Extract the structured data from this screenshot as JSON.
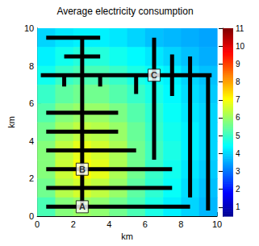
{
  "chart_data": {
    "type": "heatmap",
    "title": "Average electricity consumption",
    "x_label": "km",
    "y_label": "km",
    "xlim": [
      0,
      10
    ],
    "xticks": [
      0,
      2,
      4,
      6,
      8,
      10
    ],
    "ylim": [
      0,
      10
    ],
    "yticks": [
      0,
      2,
      4,
      6,
      8,
      10
    ],
    "cells": {
      "x": [
        0.5,
        1.5,
        2.5,
        3.5,
        4.5,
        5.5,
        6.5,
        7.5,
        8.5,
        9.5
      ],
      "y": [
        9.5,
        8.5,
        7.5,
        6.5,
        5.5,
        4.5,
        3.5,
        2.5,
        1.5,
        0.5
      ],
      "values": [
        [
          4.0,
          4.2,
          4.3,
          4.3,
          4.2,
          4.0,
          3.8,
          3.7,
          3.6,
          3.5
        ],
        [
          4.3,
          4.6,
          4.8,
          4.8,
          4.6,
          4.4,
          4.2,
          4.0,
          3.8,
          3.6
        ],
        [
          4.6,
          5.0,
          5.2,
          5.2,
          5.0,
          4.7,
          4.5,
          4.3,
          4.0,
          3.8
        ],
        [
          5.0,
          5.4,
          5.6,
          5.6,
          5.3,
          5.0,
          4.7,
          4.4,
          4.1,
          3.9
        ],
        [
          5.3,
          5.8,
          6.0,
          6.0,
          5.7,
          5.3,
          4.9,
          4.5,
          4.2,
          4.0
        ],
        [
          5.6,
          6.1,
          6.4,
          6.3,
          6.0,
          5.5,
          5.0,
          4.6,
          4.3,
          4.0
        ],
        [
          5.8,
          6.4,
          6.8,
          6.6,
          6.2,
          5.6,
          5.1,
          4.7,
          4.3,
          4.0
        ],
        [
          5.8,
          6.5,
          7.0,
          6.8,
          6.2,
          5.6,
          5.0,
          4.6,
          4.2,
          3.9
        ],
        [
          5.6,
          6.3,
          6.6,
          6.4,
          6.0,
          5.4,
          4.9,
          4.5,
          4.1,
          3.8
        ],
        [
          5.2,
          5.8,
          6.0,
          5.9,
          5.6,
          5.2,
          4.7,
          4.3,
          4.0,
          3.7
        ]
      ]
    },
    "colorbar_range": [
      0.5,
      11
    ],
    "colorbar_ticks": [
      1,
      2,
      3,
      4,
      5,
      6,
      7,
      8,
      9,
      10,
      11
    ],
    "network": {
      "color": "#000000",
      "segments": [
        [
          [
            2.5,
            0.5
          ],
          [
            2.5,
            9.5
          ]
        ],
        [
          [
            0.5,
            9.5
          ],
          [
            3.5,
            9.5
          ]
        ],
        [
          [
            1.5,
            8.5
          ],
          [
            3.5,
            8.5
          ]
        ],
        [
          [
            0.2,
            7.5
          ],
          [
            9.7,
            7.5
          ]
        ],
        [
          [
            1.5,
            7.5
          ],
          [
            1.5,
            6.9
          ]
        ],
        [
          [
            3.5,
            7.5
          ],
          [
            3.5,
            6.9
          ]
        ],
        [
          [
            5.5,
            7.5
          ],
          [
            5.5,
            6.5
          ]
        ],
        [
          [
            6.5,
            9.5
          ],
          [
            6.5,
            3.0
          ]
        ],
        [
          [
            7.5,
            8.6
          ],
          [
            7.5,
            6.4
          ]
        ],
        [
          [
            8.5,
            8.5
          ],
          [
            8.5,
            1.0
          ]
        ],
        [
          [
            9.5,
            7.5
          ],
          [
            9.5,
            0.3
          ]
        ],
        [
          [
            0.5,
            5.5
          ],
          [
            4.5,
            5.5
          ]
        ],
        [
          [
            0.5,
            4.5
          ],
          [
            4.5,
            4.5
          ]
        ],
        [
          [
            0.5,
            3.5
          ],
          [
            5.5,
            3.5
          ]
        ],
        [
          [
            0.5,
            2.5
          ],
          [
            7.5,
            2.5
          ]
        ],
        [
          [
            0.5,
            1.5
          ],
          [
            7.5,
            1.5
          ]
        ],
        [
          [
            0.5,
            0.5
          ],
          [
            8.5,
            0.5
          ]
        ]
      ]
    },
    "annotations": [
      {
        "text": "A",
        "x": 2.5,
        "y": 0.5
      },
      {
        "text": "B",
        "x": 2.5,
        "y": 2.5
      },
      {
        "text": "C",
        "x": 6.5,
        "y": 7.5
      }
    ]
  }
}
